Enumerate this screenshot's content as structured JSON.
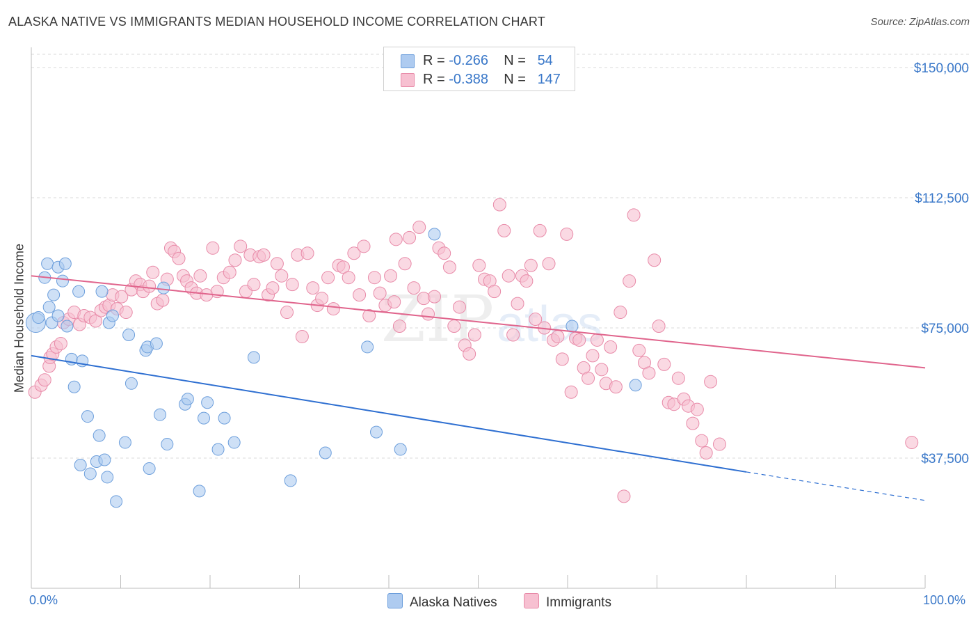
{
  "title": "ALASKA NATIVE VS IMMIGRANTS MEDIAN HOUSEHOLD INCOME CORRELATION CHART",
  "source": "Source: ZipAtlas.com",
  "legend": {
    "rows": [
      {
        "r_label": "R =",
        "r_value": "-0.266",
        "n_label": "N =",
        "n_value": "54",
        "color": "#aecbf0"
      },
      {
        "r_label": "R =",
        "r_value": "-0.388",
        "n_label": "N =",
        "n_value": "147",
        "color": "#f5b8cb"
      }
    ]
  },
  "bottom_legend": {
    "alaska": "Alaska Natives",
    "immigrants": "Immigrants"
  },
  "chart_data": {
    "type": "scatter",
    "title": "ALASKA NATIVE VS IMMIGRANTS MEDIAN HOUSEHOLD INCOME CORRELATION CHART",
    "xlabel": "",
    "ylabel": "Median Household Income",
    "xlim": [
      0,
      100
    ],
    "ylim": [
      0,
      155000
    ],
    "x_tick_labels": [
      "0.0%",
      "100.0%"
    ],
    "y_ticks": [
      37500,
      75000,
      112500,
      150000
    ],
    "y_tick_labels": [
      "$37,500",
      "$75,000",
      "$112,500",
      "$150,000"
    ],
    "grid": true,
    "legend_placement": "top-center",
    "watermark": "ZIPatlas",
    "colors": {
      "alaska_fill": "#aecbf0",
      "alaska_stroke": "#6d9fdc",
      "alaska_line": "#2e6fd1",
      "imm_fill": "#f7c0d1",
      "imm_stroke": "#e88aa8",
      "imm_line": "#e0648c",
      "tick_text": "#3a78c9"
    },
    "series": [
      {
        "name": "Alaska Natives",
        "trend": {
          "x1": 0,
          "y1": 67000,
          "x2": 80,
          "y2": 33500,
          "dashed_to_x": 100,
          "dashed_to_y": 25300
        },
        "points": [
          [
            0.5,
            76500
          ],
          [
            0.8,
            78000
          ],
          [
            1.5,
            89500
          ],
          [
            1.8,
            93500
          ],
          [
            2.0,
            81000
          ],
          [
            2.3,
            76500
          ],
          [
            2.5,
            84500
          ],
          [
            3.0,
            78500
          ],
          [
            3.0,
            92500
          ],
          [
            3.5,
            88500
          ],
          [
            3.8,
            93500
          ],
          [
            4.0,
            75500
          ],
          [
            4.5,
            66000
          ],
          [
            4.8,
            58000
          ],
          [
            5.3,
            85500
          ],
          [
            5.7,
            65500
          ],
          [
            5.5,
            35500
          ],
          [
            6.3,
            49500
          ],
          [
            6.6,
            33000
          ],
          [
            7.3,
            36500
          ],
          [
            7.6,
            44000
          ],
          [
            7.9,
            85500
          ],
          [
            8.2,
            37000
          ],
          [
            8.5,
            32000
          ],
          [
            8.7,
            76500
          ],
          [
            9.1,
            78500
          ],
          [
            9.5,
            25000
          ],
          [
            10.5,
            42000
          ],
          [
            10.9,
            73000
          ],
          [
            11.2,
            59000
          ],
          [
            12.8,
            68500
          ],
          [
            13.0,
            69500
          ],
          [
            13.2,
            34500
          ],
          [
            14.0,
            70500
          ],
          [
            14.4,
            50000
          ],
          [
            14.8,
            86500
          ],
          [
            15.2,
            41500
          ],
          [
            17.2,
            53000
          ],
          [
            17.5,
            54500
          ],
          [
            18.8,
            28000
          ],
          [
            19.3,
            49000
          ],
          [
            19.7,
            53500
          ],
          [
            20.9,
            40000
          ],
          [
            21.6,
            49000
          ],
          [
            22.7,
            42000
          ],
          [
            24.9,
            66500
          ],
          [
            29.0,
            31000
          ],
          [
            32.9,
            39000
          ],
          [
            37.6,
            69500
          ],
          [
            38.6,
            45000
          ],
          [
            41.3,
            40000
          ],
          [
            45.1,
            102000
          ],
          [
            60.5,
            75500
          ],
          [
            67.6,
            58500
          ]
        ]
      },
      {
        "name": "Immigrants",
        "trend": {
          "x1": 0,
          "y1": 90000,
          "x2": 100,
          "y2": 63500
        },
        "points": [
          [
            0.4,
            56500
          ],
          [
            1.1,
            58500
          ],
          [
            1.5,
            60000
          ],
          [
            2.0,
            64000
          ],
          [
            2.1,
            66500
          ],
          [
            2.4,
            67500
          ],
          [
            2.8,
            69500
          ],
          [
            3.3,
            70500
          ],
          [
            3.6,
            76500
          ],
          [
            4.2,
            77500
          ],
          [
            4.8,
            79500
          ],
          [
            5.4,
            76000
          ],
          [
            5.9,
            78500
          ],
          [
            6.6,
            78000
          ],
          [
            7.2,
            77000
          ],
          [
            7.8,
            80000
          ],
          [
            8.3,
            81000
          ],
          [
            8.7,
            81500
          ],
          [
            9.1,
            84500
          ],
          [
            9.6,
            80500
          ],
          [
            10.1,
            84000
          ],
          [
            10.6,
            79500
          ],
          [
            11.2,
            86000
          ],
          [
            11.7,
            88500
          ],
          [
            12.2,
            87500
          ],
          [
            12.5,
            85500
          ],
          [
            13.2,
            87000
          ],
          [
            13.6,
            91000
          ],
          [
            14.1,
            82000
          ],
          [
            14.7,
            83000
          ],
          [
            15.2,
            89000
          ],
          [
            15.6,
            98000
          ],
          [
            16.0,
            97000
          ],
          [
            16.5,
            95000
          ],
          [
            17.0,
            90000
          ],
          [
            17.4,
            88500
          ],
          [
            17.9,
            86500
          ],
          [
            18.5,
            85000
          ],
          [
            18.9,
            90000
          ],
          [
            19.6,
            84500
          ],
          [
            20.3,
            98000
          ],
          [
            20.8,
            85500
          ],
          [
            21.5,
            89500
          ],
          [
            22.2,
            91000
          ],
          [
            22.8,
            94500
          ],
          [
            23.4,
            98500
          ],
          [
            24.0,
            85500
          ],
          [
            24.5,
            96000
          ],
          [
            24.9,
            87500
          ],
          [
            25.5,
            95500
          ],
          [
            26.0,
            96000
          ],
          [
            26.5,
            84500
          ],
          [
            27.0,
            86500
          ],
          [
            27.5,
            93500
          ],
          [
            28.0,
            90000
          ],
          [
            28.6,
            79500
          ],
          [
            29.2,
            87500
          ],
          [
            29.8,
            96000
          ],
          [
            30.3,
            72500
          ],
          [
            30.9,
            96500
          ],
          [
            31.5,
            86500
          ],
          [
            32.0,
            81500
          ],
          [
            32.5,
            83500
          ],
          [
            33.2,
            89500
          ],
          [
            33.8,
            80500
          ],
          [
            34.4,
            93000
          ],
          [
            34.9,
            92500
          ],
          [
            35.5,
            89500
          ],
          [
            36.1,
            96500
          ],
          [
            36.7,
            84500
          ],
          [
            37.2,
            98500
          ],
          [
            37.8,
            78500
          ],
          [
            38.4,
            89500
          ],
          [
            39.0,
            85000
          ],
          [
            39.6,
            81500
          ],
          [
            40.2,
            90000
          ],
          [
            40.6,
            82500
          ],
          [
            41.2,
            75500
          ],
          [
            41.8,
            93500
          ],
          [
            42.3,
            101000
          ],
          [
            42.8,
            86500
          ],
          [
            43.4,
            104000
          ],
          [
            43.9,
            83500
          ],
          [
            44.4,
            79000
          ],
          [
            45.1,
            84000
          ],
          [
            45.6,
            98000
          ],
          [
            46.2,
            96500
          ],
          [
            46.8,
            92500
          ],
          [
            47.3,
            75500
          ],
          [
            47.9,
            81000
          ],
          [
            48.5,
            70000
          ],
          [
            49.0,
            67500
          ],
          [
            49.6,
            73000
          ],
          [
            50.1,
            93000
          ],
          [
            50.7,
            89000
          ],
          [
            51.3,
            88500
          ],
          [
            51.8,
            85500
          ],
          [
            52.4,
            110500
          ],
          [
            52.9,
            103000
          ],
          [
            53.4,
            90000
          ],
          [
            53.9,
            73000
          ],
          [
            54.4,
            82000
          ],
          [
            54.9,
            90000
          ],
          [
            55.4,
            88500
          ],
          [
            55.9,
            93000
          ],
          [
            56.4,
            77500
          ],
          [
            56.9,
            103000
          ],
          [
            57.4,
            75000
          ],
          [
            57.9,
            93500
          ],
          [
            58.4,
            71500
          ],
          [
            58.9,
            72500
          ],
          [
            59.4,
            66000
          ],
          [
            59.9,
            102000
          ],
          [
            60.4,
            56500
          ],
          [
            60.9,
            72000
          ],
          [
            61.3,
            71500
          ],
          [
            61.8,
            63500
          ],
          [
            62.3,
            60500
          ],
          [
            62.8,
            67000
          ],
          [
            63.3,
            71500
          ],
          [
            63.8,
            63000
          ],
          [
            64.3,
            59000
          ],
          [
            64.8,
            69500
          ],
          [
            65.4,
            58000
          ],
          [
            65.9,
            79500
          ],
          [
            66.3,
            26500
          ],
          [
            66.9,
            88500
          ],
          [
            67.4,
            107500
          ],
          [
            68.0,
            68500
          ],
          [
            68.6,
            65000
          ],
          [
            69.1,
            62000
          ],
          [
            69.7,
            94500
          ],
          [
            70.2,
            75500
          ],
          [
            70.8,
            64500
          ],
          [
            71.3,
            53500
          ],
          [
            71.9,
            53000
          ],
          [
            72.4,
            60500
          ],
          [
            73.0,
            54500
          ],
          [
            73.5,
            52500
          ],
          [
            74.0,
            47500
          ],
          [
            74.5,
            51500
          ],
          [
            75.0,
            42500
          ],
          [
            75.5,
            39000
          ],
          [
            76.0,
            59500
          ],
          [
            77.0,
            41500
          ],
          [
            98.5,
            42000
          ],
          [
            40.8,
            100500
          ]
        ]
      }
    ]
  }
}
